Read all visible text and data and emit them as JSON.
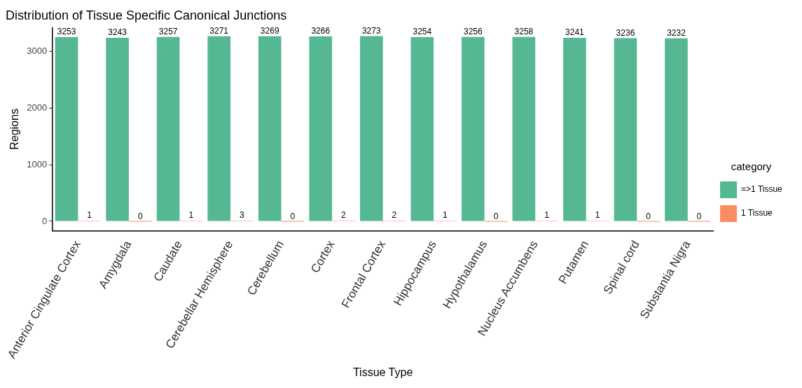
{
  "chart_data": {
    "type": "bar",
    "title": "Distribution of Tissue Specific Canonical Junctions",
    "xlabel": "Tissue Type",
    "ylabel": "Regions",
    "legend_title": "category",
    "categories": [
      "Anterior Cingulate Cortex",
      "Amygdala",
      "Caudate",
      "Cerebellar Hemisphere",
      "Cerebellum",
      "Cortex",
      "Frontal Cortex",
      "Hippocampus",
      "Hypothalamus",
      "Nucleus Accumbens",
      "Putamen",
      "Spinal cord",
      "Substantia Nigra"
    ],
    "series": [
      {
        "name": "=>1 Tissue",
        "color": "#56b893",
        "values": [
          3253,
          3243,
          3257,
          3271,
          3269,
          3266,
          3273,
          3254,
          3256,
          3258,
          3241,
          3236,
          3232
        ]
      },
      {
        "name": "1 Tissue",
        "color": "#fc8d62",
        "values": [
          1,
          0,
          1,
          3,
          0,
          2,
          2,
          1,
          0,
          1,
          1,
          0,
          0
        ]
      }
    ],
    "ylim": [
      -165,
      3420
    ],
    "yticks": [
      0,
      1000,
      2000,
      3000
    ],
    "grid": false,
    "legend": "right",
    "data_labels": true
  }
}
